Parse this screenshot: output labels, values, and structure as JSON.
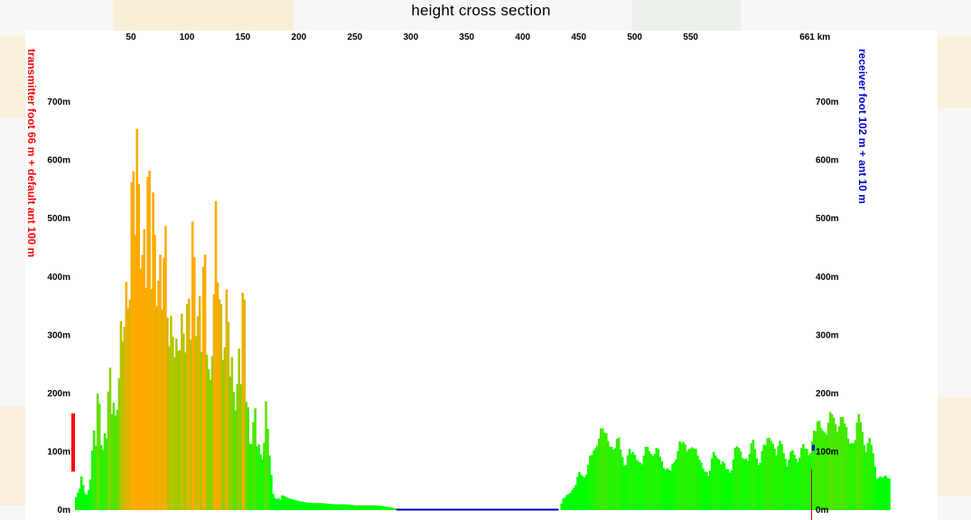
{
  "title": "height cross section",
  "chart_data": {
    "type": "area",
    "title": "height cross section",
    "x_unit": "km",
    "x_ticks": [
      "50",
      "100",
      "150",
      "200",
      "250",
      "300",
      "350",
      "400",
      "450",
      "500",
      "550",
      "661 km"
    ],
    "x_tick_values": [
      50,
      100,
      150,
      200,
      250,
      300,
      350,
      400,
      450,
      500,
      550,
      661
    ],
    "xlim": [
      0,
      727
    ],
    "y_ticks_left": [
      "0m",
      "100m",
      "200m",
      "300m",
      "400m",
      "500m",
      "600m",
      "700m"
    ],
    "y_ticks_right": [
      "0m",
      "100m",
      "200m",
      "300m",
      "400m",
      "500m",
      "600m",
      "700m"
    ],
    "y_tick_values": [
      0,
      100,
      200,
      300,
      400,
      500,
      600,
      700
    ],
    "ylim": [
      0,
      790
    ],
    "left_label": "transmitter foot 66 m + default ant 100 m",
    "right_label": "receiver foot 102 m + ant 10 m",
    "transmitter": {
      "foot_m": 66,
      "antenna_m": 100,
      "color": "#ff0000"
    },
    "receiver": {
      "foot_m": 102,
      "antenna_m": 10,
      "color": "#0000cc"
    },
    "colors": {
      "low": "#00ff00",
      "high": "#ffaa00",
      "water": "#0000cc"
    },
    "water_segment_km": [
      287,
      432
    ],
    "profile": {
      "x_km": [
        0,
        5,
        10,
        15,
        20,
        25,
        30,
        35,
        40,
        45,
        50,
        55,
        60,
        65,
        70,
        75,
        80,
        85,
        90,
        95,
        100,
        105,
        110,
        115,
        120,
        125,
        130,
        135,
        140,
        145,
        150,
        155,
        160,
        165,
        170,
        175,
        180,
        190,
        200,
        210,
        220,
        230,
        240,
        250,
        260,
        270,
        280,
        285,
        290,
        300,
        320,
        340,
        360,
        380,
        400,
        420,
        432,
        435,
        440,
        445,
        450,
        455,
        460,
        465,
        470,
        475,
        480,
        485,
        490,
        495,
        500,
        505,
        510,
        515,
        520,
        525,
        530,
        535,
        540,
        545,
        550,
        555,
        560,
        565,
        570,
        575,
        580,
        585,
        590,
        595,
        600,
        605,
        610,
        615,
        620,
        625,
        630,
        635,
        640,
        645,
        650,
        655,
        660,
        665,
        670,
        675,
        680,
        685,
        690,
        695,
        700,
        705,
        710,
        715,
        720,
        727
      ],
      "height_m": [
        40,
        60,
        30,
        140,
        230,
        170,
        250,
        260,
        340,
        460,
        760,
        660,
        750,
        600,
        720,
        480,
        540,
        470,
        280,
        540,
        360,
        630,
        430,
        480,
        350,
        540,
        480,
        420,
        260,
        350,
        410,
        200,
        180,
        120,
        230,
        40,
        30,
        20,
        15,
        12,
        12,
        10,
        10,
        8,
        8,
        8,
        5,
        3,
        0,
        0,
        0,
        0,
        0,
        0,
        0,
        0,
        0,
        20,
        30,
        40,
        70,
        60,
        100,
        120,
        150,
        130,
        110,
        130,
        80,
        110,
        100,
        80,
        120,
        100,
        110,
        80,
        70,
        90,
        130,
        110,
        120,
        100,
        80,
        60,
        110,
        90,
        80,
        70,
        120,
        100,
        90,
        130,
        80,
        120,
        140,
        100,
        130,
        80,
        110,
        90,
        120,
        100,
        150,
        160,
        140,
        180,
        150,
        170,
        130,
        120,
        180,
        110,
        130,
        60,
        60,
        60
      ]
    }
  }
}
